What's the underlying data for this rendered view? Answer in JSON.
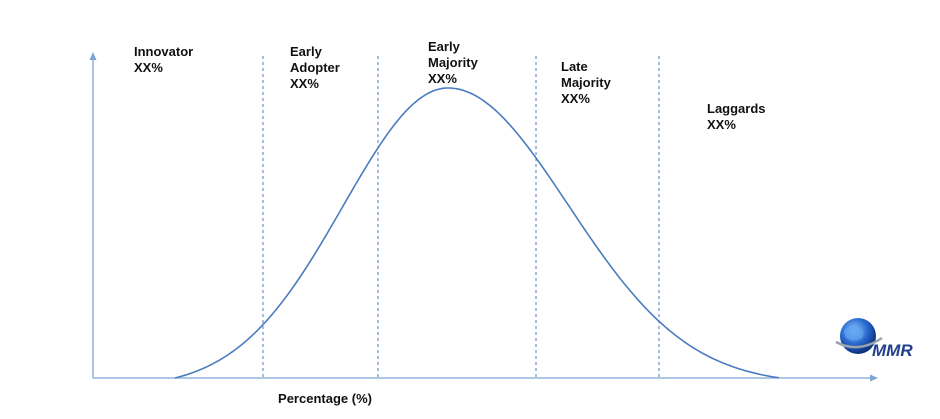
{
  "chart_data": {
    "type": "line",
    "title": "",
    "xlabel": "Percentage (%)",
    "ylabel": "",
    "segments": [
      {
        "lines": [
          "Innovator",
          "XX%"
        ]
      },
      {
        "lines": [
          "Early",
          "Adopter",
          "XX%"
        ]
      },
      {
        "lines": [
          "Early",
          "Majority",
          "XX%"
        ]
      },
      {
        "lines": [
          "Late",
          "Majority",
          "XX%"
        ]
      },
      {
        "lines": [
          "Laggards",
          "XX%"
        ]
      }
    ],
    "curve": "bell",
    "grid": false,
    "legend": "none"
  },
  "colors": {
    "axis": "#7aa6d6",
    "curve": "#4a7cc0",
    "divider": "#4a7cc0",
    "text": "#111111"
  },
  "logo": {
    "text": "MMR"
  }
}
